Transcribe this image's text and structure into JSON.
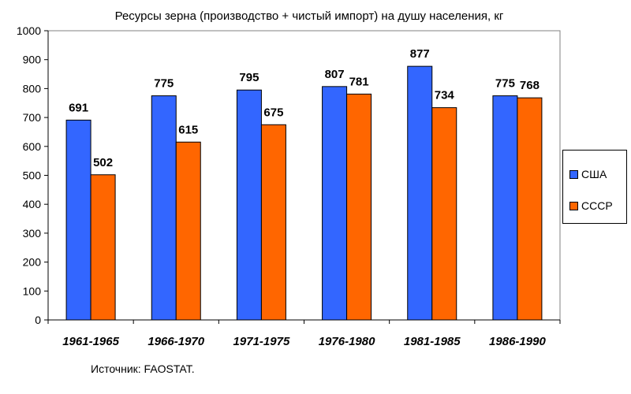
{
  "chart_data": {
    "type": "bar",
    "title": "Ресурсы зерна (производство + чистый импорт) на душу населения, кг",
    "categories": [
      "1961-1965",
      "1966-1970",
      "1971-1975",
      "1976-1980",
      "1981-1985",
      "1986-1990"
    ],
    "series": [
      {
        "name": "США",
        "color": "#3366ff",
        "values": [
          691,
          775,
          795,
          807,
          877,
          775
        ]
      },
      {
        "name": "СССР",
        "color": "#ff6600",
        "values": [
          502,
          615,
          675,
          781,
          734,
          768
        ]
      }
    ],
    "ylim": [
      0,
      1000
    ],
    "yticks": [
      0,
      100,
      200,
      300,
      400,
      500,
      600,
      700,
      800,
      900,
      1000
    ],
    "data_labels": true,
    "grid": false,
    "legend_position": "right"
  },
  "source": "Источник: FAOSTAT."
}
